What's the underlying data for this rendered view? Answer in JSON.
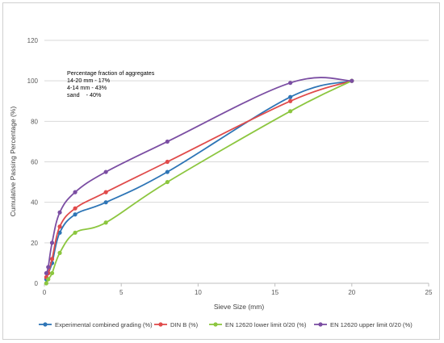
{
  "chart_data": {
    "type": "line",
    "xlabel": "Sieve Size (mm)",
    "ylabel": "Cumulative Passing Percentage (%)",
    "xlim": [
      0,
      25
    ],
    "ylim": [
      0,
      120
    ],
    "xticks": [
      0,
      5,
      10,
      15,
      20,
      25
    ],
    "yticks": [
      0,
      20,
      40,
      60,
      80,
      100,
      120
    ],
    "grid": "horizontal",
    "legend_position": "bottom",
    "annotation": {
      "title": "Percentage fraction of aggregates",
      "lines": [
        "14-20 mm - 17%",
        "4-14 mm - 43%",
        "sand    - 40%"
      ]
    },
    "series": [
      {
        "name": "Experimental combined grading (%)",
        "color": "#2e75b6",
        "x": [
          0.125,
          0.25,
          0.5,
          1,
          2,
          4,
          8,
          16,
          20
        ],
        "y": [
          2,
          5,
          10,
          25,
          34,
          40,
          55,
          92,
          100
        ]
      },
      {
        "name": "DIN B (%)",
        "color": "#e04b4b",
        "x": [
          0.125,
          0.25,
          0.5,
          1,
          2,
          4,
          8,
          16,
          20
        ],
        "y": [
          3,
          5,
          12,
          28,
          37,
          45,
          60,
          90,
          100
        ]
      },
      {
        "name": "EN 12620 lower limit 0/20 (%)",
        "color": "#8cc63f",
        "x": [
          0.125,
          0.25,
          0.5,
          1,
          2,
          4,
          8,
          16,
          20
        ],
        "y": [
          0,
          2,
          5,
          15,
          25,
          30,
          50,
          85,
          100
        ]
      },
      {
        "name": "EN 12620 upper limit 0/20 (%)",
        "color": "#7b4ea3",
        "x": [
          0.125,
          0.25,
          0.5,
          1,
          2,
          4,
          8,
          16,
          20
        ],
        "y": [
          5,
          8,
          20,
          35,
          45,
          55,
          70,
          99,
          100
        ]
      }
    ]
  }
}
